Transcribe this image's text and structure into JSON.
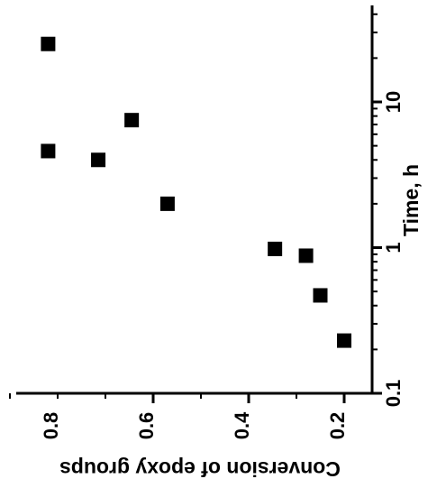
{
  "chart_data": {
    "type": "scatter",
    "title": "",
    "orientation": "rotated 90 degrees clockwise",
    "xlabel": "Time, h",
    "ylabel": "Conversion of epoxy groups",
    "x_scale": "log",
    "xlim": [
      0.1,
      40
    ],
    "ylim": [
      0.15,
      0.95
    ],
    "x_ticks": [
      {
        "value": 0.1,
        "label": "0.1"
      },
      {
        "value": 1,
        "label": "1"
      },
      {
        "value": 10,
        "label": "10"
      }
    ],
    "y_ticks": [
      {
        "value": 0.2,
        "label": "0.2"
      },
      {
        "value": 0.4,
        "label": "0.4"
      },
      {
        "value": 0.6,
        "label": "0.6"
      },
      {
        "value": 0.8,
        "label": "0.8"
      }
    ],
    "marker": "square",
    "marker_color": "#000000",
    "grid": false,
    "legend": "none",
    "series": [
      {
        "points": [
          {
            "x": 0.23,
            "y": 0.2
          },
          {
            "x": 0.47,
            "y": 0.25
          },
          {
            "x": 0.88,
            "y": 0.28
          },
          {
            "x": 0.98,
            "y": 0.345
          },
          {
            "x": 2.0,
            "y": 0.57
          },
          {
            "x": 4.0,
            "y": 0.715
          },
          {
            "x": 4.6,
            "y": 0.82
          },
          {
            "x": 7.5,
            "y": 0.645
          },
          {
            "x": 25,
            "y": 0.82
          }
        ]
      }
    ]
  }
}
